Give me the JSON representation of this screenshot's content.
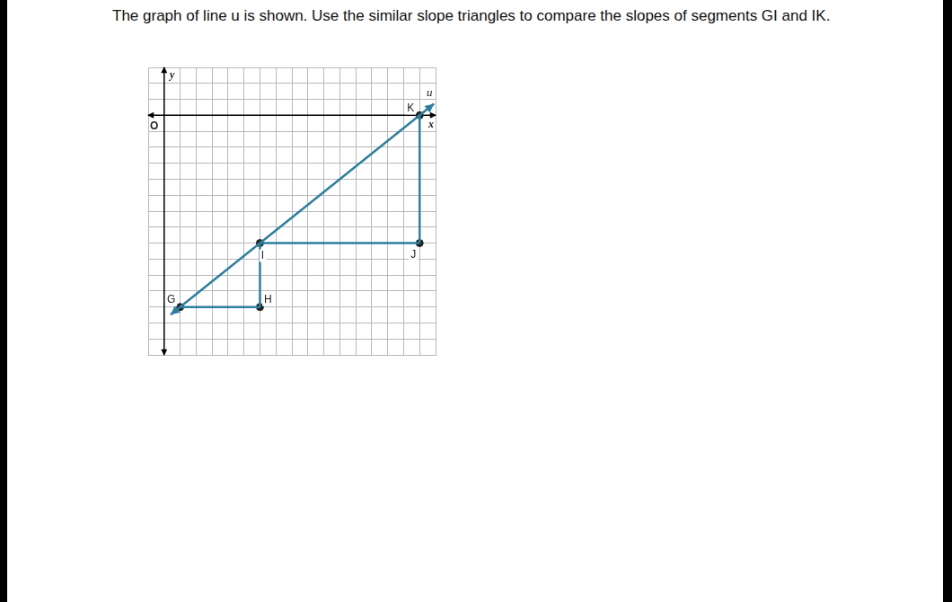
{
  "question": "The graph of line u is shown. Use the similar slope triangles to compare the slopes of segments GI and IK.",
  "chart_data": {
    "type": "scatter",
    "xlim": [
      -1,
      17
    ],
    "ylim": [
      -15,
      3
    ],
    "xticks": [
      -1,
      0,
      1,
      2,
      3,
      4,
      5,
      6,
      7,
      8,
      9,
      10,
      11,
      12,
      13,
      14,
      15,
      16,
      17
    ],
    "yticks": [
      -15,
      -14,
      -13,
      -12,
      -11,
      -10,
      -9,
      -8,
      -7,
      -6,
      -5,
      -4,
      -3,
      -2,
      -1,
      0,
      1,
      2,
      3
    ],
    "grid": true,
    "tick_labels": false,
    "x_label": "x",
    "y_label": "y",
    "origin_label": "O",
    "color": "#2b7fa0",
    "points": {
      "labels": [
        "G",
        "H",
        "I",
        "J",
        "K"
      ],
      "x": [
        1,
        6,
        6,
        16,
        16
      ],
      "y": [
        -12,
        -12,
        -8,
        -8,
        0
      ],
      "color": "#222222"
    },
    "line": {
      "label": "u",
      "x": [
        0.4,
        16.9
      ],
      "y": [
        -12.48,
        0.72
      ]
    },
    "segments": [
      [
        "G",
        "H"
      ],
      [
        "H",
        "I"
      ],
      [
        "I",
        "J"
      ],
      [
        "J",
        "K"
      ]
    ]
  }
}
